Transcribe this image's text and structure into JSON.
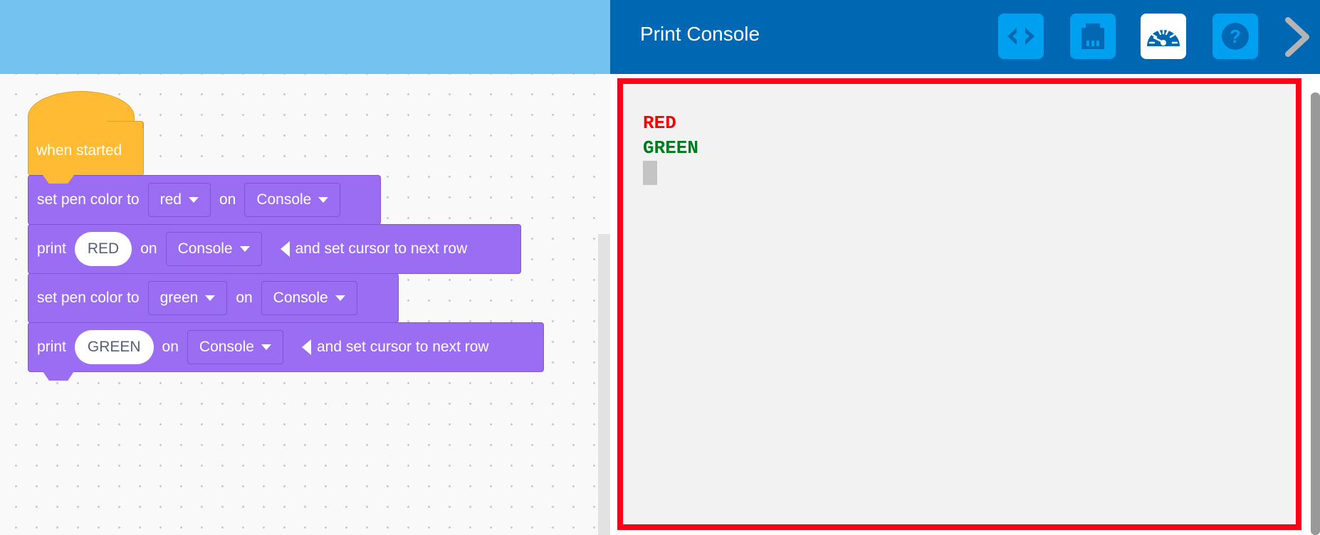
{
  "editor": {
    "hat": {
      "label": "when started"
    },
    "blocks": [
      {
        "type": "set-pen",
        "label": "set pen color to",
        "color": "red",
        "on": "on",
        "target": "Console"
      },
      {
        "type": "print",
        "label": "print",
        "value": "RED",
        "on": "on",
        "target": "Console",
        "suffix": "and set cursor to next row"
      },
      {
        "type": "set-pen",
        "label": "set pen color to",
        "color": "green",
        "on": "on",
        "target": "Console"
      },
      {
        "type": "print",
        "label": "print",
        "value": "GREEN",
        "on": "on",
        "target": "Console",
        "suffix": "and set cursor to next row"
      }
    ]
  },
  "console": {
    "title": "Print Console",
    "toolbar": [
      "code-icon",
      "device-port-icon",
      "dashboard-gauge-icon",
      "help-icon",
      "chevron-right-icon"
    ],
    "active_tool": "dashboard-gauge-icon",
    "lines": [
      {
        "text": "RED",
        "color": "#ff0000"
      },
      {
        "text": "GREEN",
        "color": "#007a1f"
      }
    ],
    "highlight_color": "#ff0018"
  }
}
